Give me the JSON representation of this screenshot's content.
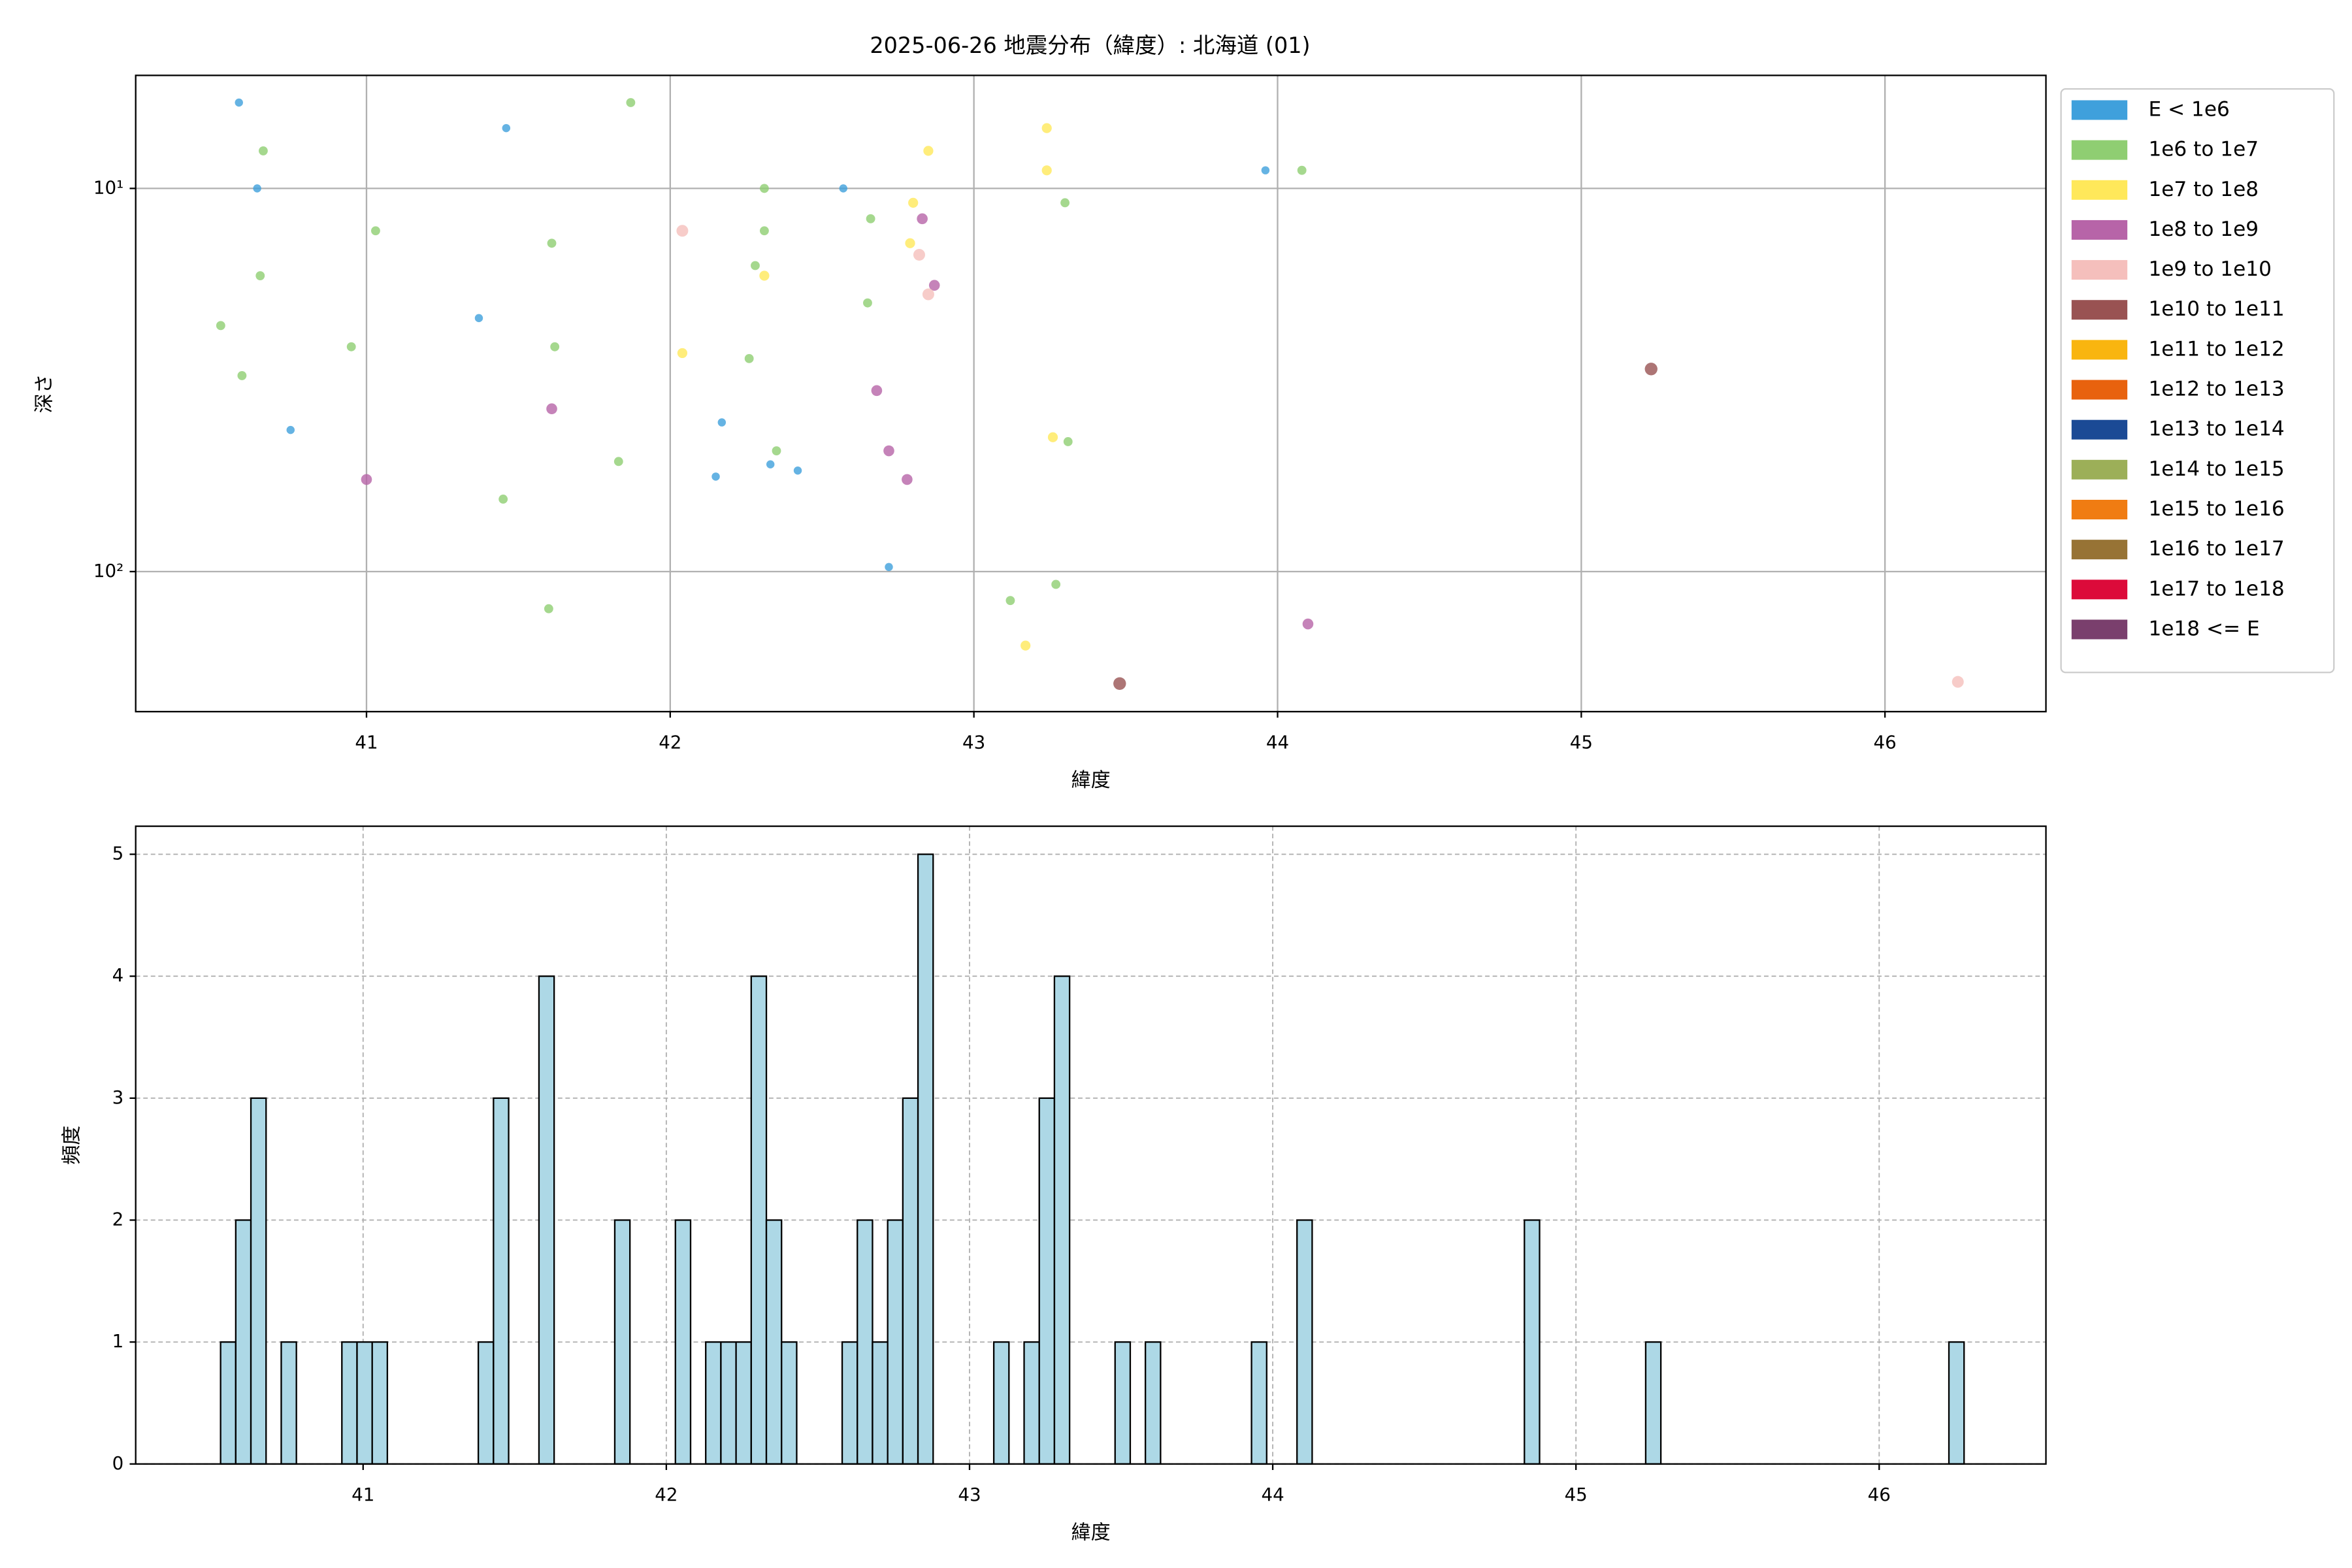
{
  "chart_data": [
    {
      "type": "scatter",
      "title": "2025-06-26 地震分布（緯度）: 北海道 (01)",
      "x_label": "緯度",
      "y_label": "深さ",
      "xlim": [
        40.24,
        46.53
      ],
      "xticks": [
        41,
        42,
        43,
        44,
        45,
        46
      ],
      "ylim": [
        5.07,
        232
      ],
      "log_y": true,
      "invert_y": true,
      "yticks": [
        {
          "value": 10,
          "label": "10¹"
        },
        {
          "value": 100,
          "label": "10²"
        }
      ],
      "grid": true,
      "legend": "outside-right",
      "series": [
        {
          "name": "E < 1e6",
          "color": "#3fa0dc",
          "x": [
            40.58,
            41.46,
            40.64,
            41.37,
            40.75,
            42.17,
            42.33,
            42.42,
            42.15,
            42.57,
            42.72,
            43.96
          ],
          "y": [
            5.97,
            6.96,
            10,
            21.8,
            42.7,
            40.8,
            52.5,
            54.5,
            56.5,
            10,
            97.3,
            8.97
          ]
        },
        {
          "name": "1e6 to 1e7",
          "color": "#8fce72",
          "x": [
            41.87,
            40.66,
            42.31,
            43.3,
            44.08,
            41.03,
            41.61,
            42.66,
            42.31,
            42.28,
            40.65,
            42.65,
            40.52,
            40.95,
            41.62,
            40.59,
            42.26,
            42.35,
            43.31,
            41.83,
            41.45,
            41.6,
            43.12,
            43.27
          ],
          "y": [
            5.97,
            7.98,
            10,
            10.9,
            8.97,
            12.9,
            13.9,
            12.0,
            12.9,
            15.9,
            16.9,
            19.9,
            22.8,
            25.9,
            25.9,
            30.8,
            27.8,
            48.4,
            45.8,
            51.6,
            64.7,
            125,
            119,
            108
          ]
        },
        {
          "name": "1e7 to 1e8",
          "color": "#ffe85a",
          "x": [
            43.24,
            42.85,
            43.24,
            42.8,
            42.79,
            42.31,
            42.04,
            43.26,
            43.17
          ],
          "y": [
            6.96,
            7.98,
            8.97,
            10.9,
            13.9,
            16.9,
            26.9,
            44.6,
            156
          ]
        },
        {
          "name": "1e8 to 1e9",
          "color": "#b764a8",
          "x": [
            42.83,
            42.87,
            42.68,
            41.61,
            42.72,
            41.0,
            42.78,
            44.1
          ],
          "y": [
            12.0,
            17.9,
            33.7,
            37.6,
            48.4,
            57.5,
            57.5,
            137
          ]
        },
        {
          "name": "1e9 to 1e10",
          "color": "#f5bfbc",
          "x": [
            42.04,
            42.82,
            42.85,
            46.24
          ],
          "y": [
            12.9,
            14.9,
            18.9,
            194
          ]
        },
        {
          "name": "1e10 to 1e11",
          "color": "#995252",
          "x": [
            45.23,
            43.48
          ],
          "y": [
            29.6,
            196
          ]
        },
        {
          "name": "1e11 to 1e12",
          "color": "#f9b50f",
          "x": [],
          "y": []
        },
        {
          "name": "1e12 to 1e13",
          "color": "#e8620e",
          "x": [],
          "y": []
        },
        {
          "name": "1e13 to 1e14",
          "color": "#1b4a95",
          "x": [],
          "y": []
        },
        {
          "name": "1e14 to 1e15",
          "color": "#9caf58",
          "x": [],
          "y": []
        },
        {
          "name": "1e15 to 1e16",
          "color": "#f07c12",
          "x": [],
          "y": []
        },
        {
          "name": "1e16 to 1e17",
          "color": "#977335",
          "x": [],
          "y": []
        },
        {
          "name": "1e17 to 1e18",
          "color": "#dc0b3a",
          "x": [],
          "y": []
        },
        {
          "name": "1e18 <= E",
          "color": "#7a3f6d",
          "x": [],
          "y": []
        }
      ]
    },
    {
      "type": "histogram",
      "x_label": "緯度",
      "y_label": "頻度",
      "color": "#add8e6",
      "xlim": [
        40.25,
        46.55
      ],
      "xticks": [
        41,
        42,
        43,
        44,
        45,
        46
      ],
      "ylim": [
        0,
        5.23
      ],
      "yticks": [
        0,
        1,
        2,
        3,
        4,
        5
      ],
      "grid": true,
      "bins": [
        40.53,
        40.58,
        40.63,
        40.68,
        40.73,
        40.78,
        40.83,
        40.88,
        40.93,
        40.98,
        41.03,
        41.08,
        41.13,
        41.18,
        41.23,
        41.28,
        41.33,
        41.38,
        41.43,
        41.48,
        41.53,
        41.58,
        41.63,
        41.68,
        41.73,
        41.78,
        41.83,
        41.88,
        41.93,
        41.98,
        42.03,
        42.08,
        42.13,
        42.18,
        42.23,
        42.28,
        42.33,
        42.38,
        42.43,
        42.48,
        42.53,
        42.58,
        42.63,
        42.68,
        42.73,
        42.78,
        42.83,
        42.88,
        42.93,
        42.98,
        43.03,
        43.08,
        43.13,
        43.18,
        43.23,
        43.28,
        43.33,
        43.38,
        43.43,
        43.48,
        43.53,
        43.58,
        43.63,
        43.68,
        43.73,
        43.78,
        43.83,
        43.88,
        43.93,
        43.98,
        44.03,
        44.08,
        44.13,
        44.18,
        44.23,
        44.28,
        44.33,
        44.38,
        44.43,
        44.48,
        44.53,
        44.58,
        44.63,
        44.68,
        44.73,
        44.78,
        44.83,
        44.88,
        44.93,
        44.98,
        45.03,
        45.08,
        45.13,
        45.18,
        45.23,
        45.28,
        45.33,
        45.38,
        45.43,
        45.48,
        45.53,
        45.58,
        45.63,
        45.68,
        45.73,
        45.78,
        45.83,
        45.88,
        45.93,
        45.98,
        46.03,
        46.08,
        46.13,
        46.18,
        46.23,
        46.28
      ],
      "counts": [
        1,
        2,
        3,
        0,
        1,
        0,
        0,
        0,
        1,
        1,
        1,
        0,
        0,
        0,
        0,
        0,
        0,
        1,
        3,
        0,
        0,
        4,
        0,
        0,
        0,
        0,
        2,
        0,
        0,
        0,
        2,
        0,
        1,
        1,
        1,
        4,
        2,
        1,
        0,
        0,
        0,
        1,
        2,
        1,
        2,
        3,
        5,
        0,
        0,
        0,
        0,
        1,
        0,
        1,
        3,
        4,
        0,
        0,
        0,
        1,
        0,
        1,
        0,
        0,
        0,
        0,
        0,
        0,
        1,
        0,
        0,
        2,
        0,
        0,
        0,
        0,
        0,
        0,
        0,
        0,
        0,
        0,
        0,
        0,
        0,
        0,
        2,
        0,
        0,
        0,
        0,
        0,
        0,
        0,
        1,
        0,
        0,
        0,
        0,
        0,
        0,
        0,
        0,
        0,
        0,
        0,
        0,
        0,
        0,
        0,
        0,
        0,
        0,
        0,
        1
      ]
    }
  ]
}
